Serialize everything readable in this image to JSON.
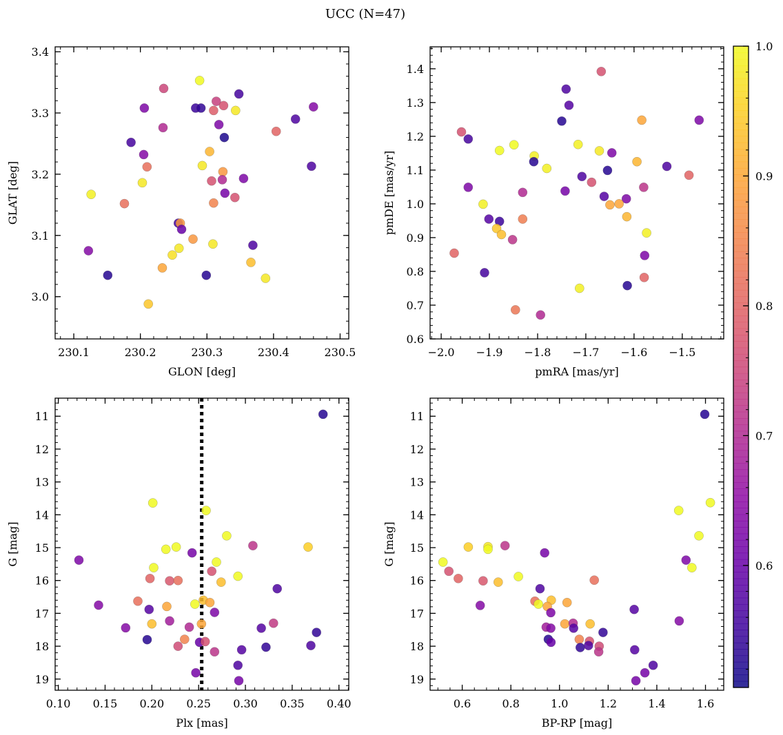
{
  "title": "UCC (N=47)",
  "colors": {
    "cmap": "plasma",
    "edge": "#555555",
    "dotted_line": "#000000"
  },
  "chart_data": [
    {
      "type": "scatter",
      "xlabel": "GLON [deg]",
      "ylabel": "GLAT [deg]",
      "xlim": [
        230.072,
        230.513
      ],
      "ylim": [
        2.931,
        3.408
      ],
      "xticks": [
        230.1,
        230.2,
        230.3,
        230.4,
        230.5
      ],
      "xtick_labels": [
        "230.1",
        "230.2",
        "230.3",
        "230.4",
        "230.5"
      ],
      "yticks": [
        3.0,
        3.1,
        3.2,
        3.3,
        3.4
      ],
      "ytick_labels": [
        "3.0",
        "3.1",
        "3.2",
        "3.3",
        "3.4"
      ],
      "x_minor_step": 0.02,
      "y_minor_step": 0.02,
      "grid": false,
      "x": [
        230.289,
        230.235,
        230.348,
        230.314,
        230.325,
        230.283,
        230.291,
        230.206,
        230.31,
        230.343,
        230.46,
        230.318,
        230.234,
        230.433,
        230.404,
        230.326,
        230.186,
        230.304,
        230.205,
        230.21,
        230.293,
        230.324,
        230.457,
        230.355,
        230.203,
        230.307,
        230.323,
        230.126,
        230.327,
        230.176,
        230.31,
        230.342,
        230.257,
        230.26,
        230.262,
        230.279,
        230.309,
        230.258,
        230.369,
        230.122,
        230.248,
        230.366,
        230.233,
        230.151,
        230.299,
        230.388,
        230.212
      ],
      "y": [
        3.353,
        3.34,
        3.331,
        3.319,
        3.312,
        3.308,
        3.308,
        3.308,
        3.304,
        3.304,
        3.31,
        3.281,
        3.276,
        3.29,
        3.27,
        3.26,
        3.252,
        3.237,
        3.232,
        3.212,
        3.214,
        3.204,
        3.213,
        3.193,
        3.186,
        3.189,
        3.191,
        3.167,
        3.169,
        3.152,
        3.153,
        3.162,
        3.12,
        3.12,
        3.11,
        3.094,
        3.086,
        3.079,
        3.084,
        3.075,
        3.068,
        3.056,
        3.047,
        3.035,
        3.035,
        3.03,
        2.988
      ],
      "c": [
        1.0,
        0.75,
        0.56,
        0.74,
        0.77,
        0.55,
        0.54,
        0.63,
        0.79,
        0.98,
        0.64,
        0.63,
        0.7,
        0.57,
        0.8,
        0.52,
        0.56,
        0.92,
        0.64,
        0.82,
        0.98,
        0.88,
        0.57,
        0.63,
        0.98,
        0.77,
        0.7,
        0.99,
        0.62,
        0.82,
        0.85,
        0.77,
        0.56,
        0.88,
        0.6,
        0.88,
        0.98,
        0.98,
        0.57,
        0.64,
        0.97,
        0.93,
        0.9,
        0.53,
        0.53,
        0.98,
        0.94
      ]
    },
    {
      "type": "scatter",
      "xlabel": "pmRA [mas/yr]",
      "ylabel": "pmDE [mas/yr]",
      "xlim": [
        -2.023,
        -1.414
      ],
      "ylim": [
        0.6,
        1.465
      ],
      "xticks": [
        -2.0,
        -1.9,
        -1.8,
        -1.7,
        -1.6,
        -1.5
      ],
      "xtick_labels": [
        "−2.0",
        "−1.9",
        "−1.8",
        "−1.7",
        "−1.6",
        "−1.5"
      ],
      "yticks": [
        0.6,
        0.7,
        0.8,
        0.9,
        1.0,
        1.1,
        1.2,
        1.3,
        1.4
      ],
      "ytick_labels": [
        "0.6",
        "0.7",
        "0.8",
        "0.9",
        "1.0",
        "1.1",
        "1.2",
        "1.3",
        "1.4"
      ],
      "x_minor_step": 0.02,
      "y_minor_step": 0.02,
      "grid": false,
      "x": [
        -1.668,
        -1.741,
        -1.735,
        -1.75,
        -1.584,
        -1.465,
        -1.958,
        -1.944,
        -1.879,
        -1.849,
        -1.807,
        -1.808,
        -1.781,
        -1.716,
        -1.672,
        -1.646,
        -1.594,
        -1.532,
        -1.655,
        -1.486,
        -1.708,
        -1.688,
        -1.944,
        -1.58,
        -1.831,
        -1.743,
        -1.662,
        -1.616,
        -1.65,
        -1.631,
        -1.913,
        -1.615,
        -1.901,
        -1.879,
        -1.831,
        -1.885,
        -1.875,
        -1.574,
        -1.852,
        -1.973,
        -1.578,
        -1.91,
        -1.579,
        -1.713,
        -1.614,
        -1.846,
        -1.794
      ],
      "y": [
        1.392,
        1.34,
        1.292,
        1.245,
        1.248,
        1.248,
        1.213,
        1.192,
        1.158,
        1.175,
        1.142,
        1.125,
        1.105,
        1.176,
        1.157,
        1.151,
        1.125,
        1.111,
        1.099,
        1.085,
        1.081,
        1.064,
        1.049,
        1.049,
        1.034,
        1.038,
        1.022,
        1.015,
        0.997,
        1.0,
        0.999,
        0.962,
        0.955,
        0.948,
        0.955,
        0.927,
        0.909,
        0.914,
        0.894,
        0.854,
        0.847,
        0.796,
        0.782,
        0.75,
        0.758,
        0.686,
        0.671
      ],
      "c": [
        0.77,
        0.57,
        0.58,
        0.53,
        0.9,
        0.63,
        0.77,
        0.56,
        1.0,
        1.0,
        0.99,
        0.53,
        0.99,
        0.99,
        0.98,
        0.63,
        0.92,
        0.57,
        0.53,
        0.8,
        0.57,
        0.77,
        0.63,
        0.72,
        0.7,
        0.62,
        0.58,
        0.63,
        0.9,
        0.9,
        0.99,
        0.92,
        0.58,
        0.55,
        0.84,
        0.94,
        0.93,
        0.99,
        0.72,
        0.8,
        0.63,
        0.56,
        0.8,
        0.99,
        0.53,
        0.83,
        0.7
      ]
    },
    {
      "type": "scatter",
      "xlabel": "Plx [mas]",
      "ylabel": "G [mag]",
      "xlim": [
        0.0966,
        0.4105
      ],
      "ylim": [
        19.34,
        10.45
      ],
      "y_inverted": true,
      "xticks": [
        0.1,
        0.15,
        0.2,
        0.25,
        0.3,
        0.35,
        0.4
      ],
      "xtick_labels": [
        "0.10",
        "0.15",
        "0.20",
        "0.25",
        "0.30",
        "0.35",
        "0.40"
      ],
      "yticks": [
        11,
        12,
        13,
        14,
        15,
        16,
        17,
        18,
        19
      ],
      "ytick_labels": [
        "11",
        "12",
        "13",
        "14",
        "15",
        "16",
        "17",
        "18",
        "19"
      ],
      "x_minor_step": 0.01,
      "y_minor_step": 0.2,
      "grid": false,
      "vline": {
        "x": 0.2533,
        "style": "dotted"
      },
      "x": [
        0.383,
        0.201,
        0.258,
        0.28,
        0.308,
        0.367,
        0.215,
        0.226,
        0.243,
        0.122,
        0.269,
        0.202,
        0.264,
        0.292,
        0.198,
        0.219,
        0.228,
        0.274,
        0.334,
        0.185,
        0.255,
        0.262,
        0.246,
        0.143,
        0.197,
        0.216,
        0.267,
        0.2,
        0.219,
        0.253,
        0.24,
        0.172,
        0.33,
        0.317,
        0.376,
        0.195,
        0.235,
        0.251,
        0.257,
        0.228,
        0.322,
        0.37,
        0.267,
        0.296,
        0.292,
        0.247,
        0.293
      ],
      "y": [
        10.94,
        13.64,
        13.87,
        14.64,
        14.94,
        14.98,
        15.05,
        14.98,
        15.16,
        15.38,
        15.44,
        15.61,
        15.72,
        15.87,
        15.94,
        16.01,
        16.0,
        16.05,
        16.25,
        16.63,
        16.6,
        16.67,
        16.72,
        16.75,
        16.88,
        16.79,
        16.97,
        17.32,
        17.23,
        17.32,
        17.42,
        17.44,
        17.3,
        17.45,
        17.58,
        17.8,
        17.79,
        17.88,
        17.86,
        18.0,
        18.03,
        17.98,
        18.17,
        18.11,
        18.58,
        18.81,
        19.05
      ],
      "c": [
        0.53,
        1.0,
        1.0,
        1.0,
        0.72,
        0.95,
        1.0,
        1.0,
        0.62,
        0.63,
        1.0,
        1.0,
        0.77,
        1.0,
        0.8,
        0.78,
        0.82,
        0.93,
        0.57,
        0.82,
        0.93,
        0.9,
        1.0,
        0.64,
        0.58,
        0.9,
        0.63,
        0.93,
        0.68,
        0.9,
        0.7,
        0.64,
        0.73,
        0.58,
        0.54,
        0.53,
        0.85,
        0.6,
        0.77,
        0.76,
        0.54,
        0.57,
        0.72,
        0.58,
        0.57,
        0.62,
        0.62
      ]
    },
    {
      "type": "scatter",
      "xlabel": "BP-RP [mag]",
      "ylabel": "G [mag]",
      "xlim": [
        0.468,
        1.675
      ],
      "ylim": [
        19.34,
        10.45
      ],
      "y_inverted": true,
      "xticks": [
        0.6,
        0.8,
        1.0,
        1.2,
        1.4,
        1.6
      ],
      "xtick_labels": [
        "0.6",
        "0.8",
        "1.0",
        "1.2",
        "1.4",
        "1.6"
      ],
      "yticks": [
        11,
        12,
        13,
        14,
        15,
        16,
        17,
        18,
        19
      ],
      "ytick_labels": [
        "11",
        "12",
        "13",
        "14",
        "15",
        "16",
        "17",
        "18",
        "19"
      ],
      "x_minor_step": 0.05,
      "y_minor_step": 0.2,
      "grid": false,
      "x": [
        1.597,
        1.62,
        1.49,
        1.573,
        0.776,
        0.625,
        0.706,
        0.706,
        0.939,
        1.52,
        0.521,
        1.544,
        0.545,
        0.831,
        0.584,
        0.686,
        1.143,
        0.748,
        0.92,
        0.899,
        0.966,
        1.031,
        0.913,
        0.674,
        1.307,
        0.95,
        0.964,
        1.126,
        0.945,
        1.022,
        1.056,
        0.964,
        1.492,
        1.058,
        1.179,
        0.954,
        1.081,
        0.965,
        1.123,
        1.163,
        1.085,
        1.119,
        1.161,
        1.309,
        1.385,
        1.351,
        1.314
      ],
      "y": [
        10.94,
        13.63,
        13.87,
        14.64,
        14.94,
        14.98,
        14.97,
        15.05,
        15.16,
        15.38,
        15.44,
        15.61,
        15.72,
        15.88,
        15.94,
        16.01,
        15.99,
        16.05,
        16.25,
        16.63,
        16.6,
        16.67,
        16.72,
        16.76,
        16.88,
        16.79,
        16.98,
        17.32,
        17.42,
        17.32,
        17.3,
        17.45,
        17.23,
        17.45,
        17.58,
        17.79,
        17.79,
        17.88,
        17.85,
        18.0,
        18.04,
        17.98,
        18.17,
        18.11,
        18.58,
        18.81,
        19.05
      ],
      "c": [
        0.53,
        1.0,
        1.0,
        1.0,
        0.72,
        0.95,
        0.98,
        1.0,
        0.62,
        0.63,
        1.0,
        1.0,
        0.77,
        1.0,
        0.8,
        0.78,
        0.82,
        0.93,
        0.57,
        0.82,
        0.93,
        0.9,
        1.0,
        0.64,
        0.58,
        0.9,
        0.63,
        0.93,
        0.68,
        0.9,
        0.7,
        0.64,
        0.64,
        0.58,
        0.54,
        0.53,
        0.85,
        0.6,
        0.77,
        0.76,
        0.54,
        0.57,
        0.72,
        0.58,
        0.57,
        0.62,
        0.62
      ]
    }
  ],
  "colorbar": {
    "cmap": "plasma",
    "range": [
      0.506,
      1.0
    ],
    "ticks": [
      0.6,
      0.7,
      0.8,
      0.9,
      1.0
    ],
    "tick_labels": [
      "0.6",
      "0.7",
      "0.8",
      "0.9",
      "1.0"
    ],
    "minor_step": 0.02
  }
}
